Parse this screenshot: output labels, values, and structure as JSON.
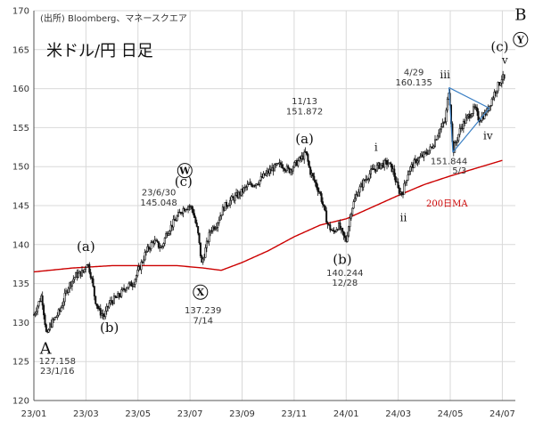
{
  "chart_data": {
    "type": "candlestick",
    "title": "米ドル/円 日足",
    "source": "(出所) Bloomberg、マネースクエア",
    "ylim": [
      120,
      170
    ],
    "y_ticks": [
      120,
      125,
      130,
      135,
      140,
      145,
      150,
      155,
      160,
      165,
      170
    ],
    "x_ticks": [
      "23/01",
      "23/03",
      "23/05",
      "23/07",
      "23/09",
      "23/11",
      "24/01",
      "24/03",
      "24/05",
      "24/07"
    ],
    "x_range_months": [
      0,
      18.5
    ],
    "grid": true,
    "price_key_points": [
      [
        0.0,
        131.0
      ],
      [
        0.3,
        133.5
      ],
      [
        0.5,
        128.0
      ],
      [
        0.6,
        129.5
      ],
      [
        0.8,
        130.5
      ],
      [
        1.0,
        131.5
      ],
      [
        1.3,
        134.5
      ],
      [
        1.6,
        136.0
      ],
      [
        1.9,
        136.5
      ],
      [
        2.05,
        137.8
      ],
      [
        2.2,
        136.0
      ],
      [
        2.35,
        133.0
      ],
      [
        2.5,
        131.5
      ],
      [
        2.7,
        130.8
      ],
      [
        2.9,
        132.5
      ],
      [
        3.1,
        133.0
      ],
      [
        3.3,
        133.5
      ],
      [
        3.5,
        134.5
      ],
      [
        3.8,
        135.0
      ],
      [
        4.0,
        136.5
      ],
      [
        4.3,
        139.0
      ],
      [
        4.6,
        140.5
      ],
      [
        4.9,
        139.5
      ],
      [
        5.1,
        141.5
      ],
      [
        5.4,
        143.0
      ],
      [
        5.7,
        144.5
      ],
      [
        5.95,
        145.0
      ],
      [
        6.1,
        144.5
      ],
      [
        6.3,
        141.5
      ],
      [
        6.45,
        137.5
      ],
      [
        6.6,
        139.5
      ],
      [
        6.8,
        142.0
      ],
      [
        7.0,
        142.5
      ],
      [
        7.3,
        144.8
      ],
      [
        7.6,
        145.8
      ],
      [
        7.9,
        146.5
      ],
      [
        8.2,
        147.5
      ],
      [
        8.6,
        148.0
      ],
      [
        8.9,
        149.0
      ],
      [
        9.2,
        149.8
      ],
      [
        9.5,
        150.3
      ],
      [
        9.8,
        149.5
      ],
      [
        10.1,
        150.5
      ],
      [
        10.4,
        151.5
      ],
      [
        10.45,
        151.87
      ],
      [
        10.6,
        149.5
      ],
      [
        10.8,
        148.0
      ],
      [
        11.0,
        146.5
      ],
      [
        11.15,
        144.5
      ],
      [
        11.3,
        142.5
      ],
      [
        11.5,
        141.5
      ],
      [
        11.7,
        142.5
      ],
      [
        11.9,
        141.0
      ],
      [
        12.0,
        140.5
      ],
      [
        12.2,
        144.5
      ],
      [
        12.4,
        146.5
      ],
      [
        12.7,
        148.2
      ],
      [
        13.0,
        149.5
      ],
      [
        13.3,
        150.2
      ],
      [
        13.6,
        150.5
      ],
      [
        13.8,
        149.5
      ],
      [
        14.0,
        147.0
      ],
      [
        14.15,
        146.5
      ],
      [
        14.4,
        149.5
      ],
      [
        14.7,
        150.8
      ],
      [
        15.0,
        151.5
      ],
      [
        15.3,
        152.5
      ],
      [
        15.55,
        154.5
      ],
      [
        15.8,
        155.8
      ],
      [
        15.95,
        160.135
      ],
      [
        16.05,
        155.0
      ],
      [
        16.1,
        151.844
      ],
      [
        16.4,
        155.0
      ],
      [
        16.7,
        156.5
      ],
      [
        16.95,
        157.5
      ],
      [
        17.1,
        156.0
      ],
      [
        17.4,
        157.0
      ],
      [
        17.7,
        159.5
      ],
      [
        18.0,
        161.5
      ],
      [
        18.1,
        161.0
      ]
    ],
    "ma_key_points": [
      [
        0.0,
        136.5
      ],
      [
        1.5,
        137.0
      ],
      [
        3.0,
        137.3
      ],
      [
        4.5,
        137.3
      ],
      [
        5.5,
        137.3
      ],
      [
        6.5,
        137.0
      ],
      [
        7.2,
        136.7
      ],
      [
        8.0,
        137.7
      ],
      [
        9.0,
        139.2
      ],
      [
        10.0,
        141.0
      ],
      [
        11.0,
        142.5
      ],
      [
        12.0,
        143.3
      ],
      [
        13.0,
        144.8
      ],
      [
        14.0,
        146.3
      ],
      [
        15.0,
        147.7
      ],
      [
        16.0,
        148.8
      ],
      [
        17.0,
        149.8
      ],
      [
        18.0,
        150.8
      ]
    ],
    "ma_label": "200日MA",
    "triangle": {
      "apex": [
        15.95,
        160.135
      ],
      "lower": [
        16.1,
        151.844
      ],
      "tip": [
        17.5,
        157.5
      ]
    },
    "wave_labels": [
      {
        "text": "A",
        "x": 0.45,
        "y": 126.0,
        "cls": "big"
      },
      {
        "text": "(a)",
        "x": 2.0,
        "y": 139.2,
        "cls": "wave"
      },
      {
        "text": "(b)",
        "x": 2.9,
        "y": 128.8,
        "cls": "wave"
      },
      {
        "text": "(c)",
        "x": 5.75,
        "y": 147.5,
        "cls": "wave"
      },
      {
        "text": "(a)",
        "x": 10.4,
        "y": 153.0,
        "cls": "wave"
      },
      {
        "text": "(b)",
        "x": 11.85,
        "y": 137.5,
        "cls": "wave"
      },
      {
        "text": "i",
        "x": 13.15,
        "y": 152.0,
        "cls": "wave-sm"
      },
      {
        "text": "ii",
        "x": 14.2,
        "y": 143.0,
        "cls": "wave-sm"
      },
      {
        "text": "iii",
        "x": 15.8,
        "y": 161.3,
        "cls": "wave-sm"
      },
      {
        "text": "iv",
        "x": 17.45,
        "y": 153.5,
        "cls": "wave-sm"
      },
      {
        "text": "v",
        "x": 18.1,
        "y": 163.2,
        "cls": "wave-sm"
      },
      {
        "text": "(c)",
        "x": 17.9,
        "y": 164.8,
        "cls": "wave"
      },
      {
        "text": "B",
        "x": 18.7,
        "y": 168.8,
        "cls": "big"
      }
    ],
    "circled_labels": [
      {
        "text": "W",
        "x": 5.8,
        "y": 149.5
      },
      {
        "text": "X",
        "x": 6.4,
        "y": 133.9
      },
      {
        "text": "Y",
        "x": 18.7,
        "y": 166.3
      }
    ],
    "annotations": [
      {
        "text": "127.158",
        "x": 0.9,
        "y": 124.7
      },
      {
        "text": "23/1/16",
        "x": 0.9,
        "y": 123.4
      },
      {
        "text": "23/6/30",
        "x": 4.8,
        "y": 146.3
      },
      {
        "text": "145.048",
        "x": 4.8,
        "y": 145.0
      },
      {
        "text": "137.239",
        "x": 6.5,
        "y": 131.2
      },
      {
        "text": "7/14",
        "x": 6.5,
        "y": 129.9
      },
      {
        "text": "11/13",
        "x": 10.4,
        "y": 158.0
      },
      {
        "text": "151.872",
        "x": 10.4,
        "y": 156.7
      },
      {
        "text": "140.244",
        "x": 11.95,
        "y": 136.0
      },
      {
        "text": "12/28",
        "x": 11.95,
        "y": 134.7
      },
      {
        "text": "4/29",
        "x": 14.6,
        "y": 161.7
      },
      {
        "text": "160.135",
        "x": 14.6,
        "y": 160.4
      },
      {
        "text": "151.844",
        "x": 15.95,
        "y": 150.3
      },
      {
        "text": "5/3",
        "x": 16.35,
        "y": 149.1
      }
    ]
  },
  "colors": {
    "price": "#111111",
    "ma": "#cc0000",
    "triangle": "#3a7fc4",
    "grid": "#d9d9d9",
    "axis": "#555555"
  }
}
